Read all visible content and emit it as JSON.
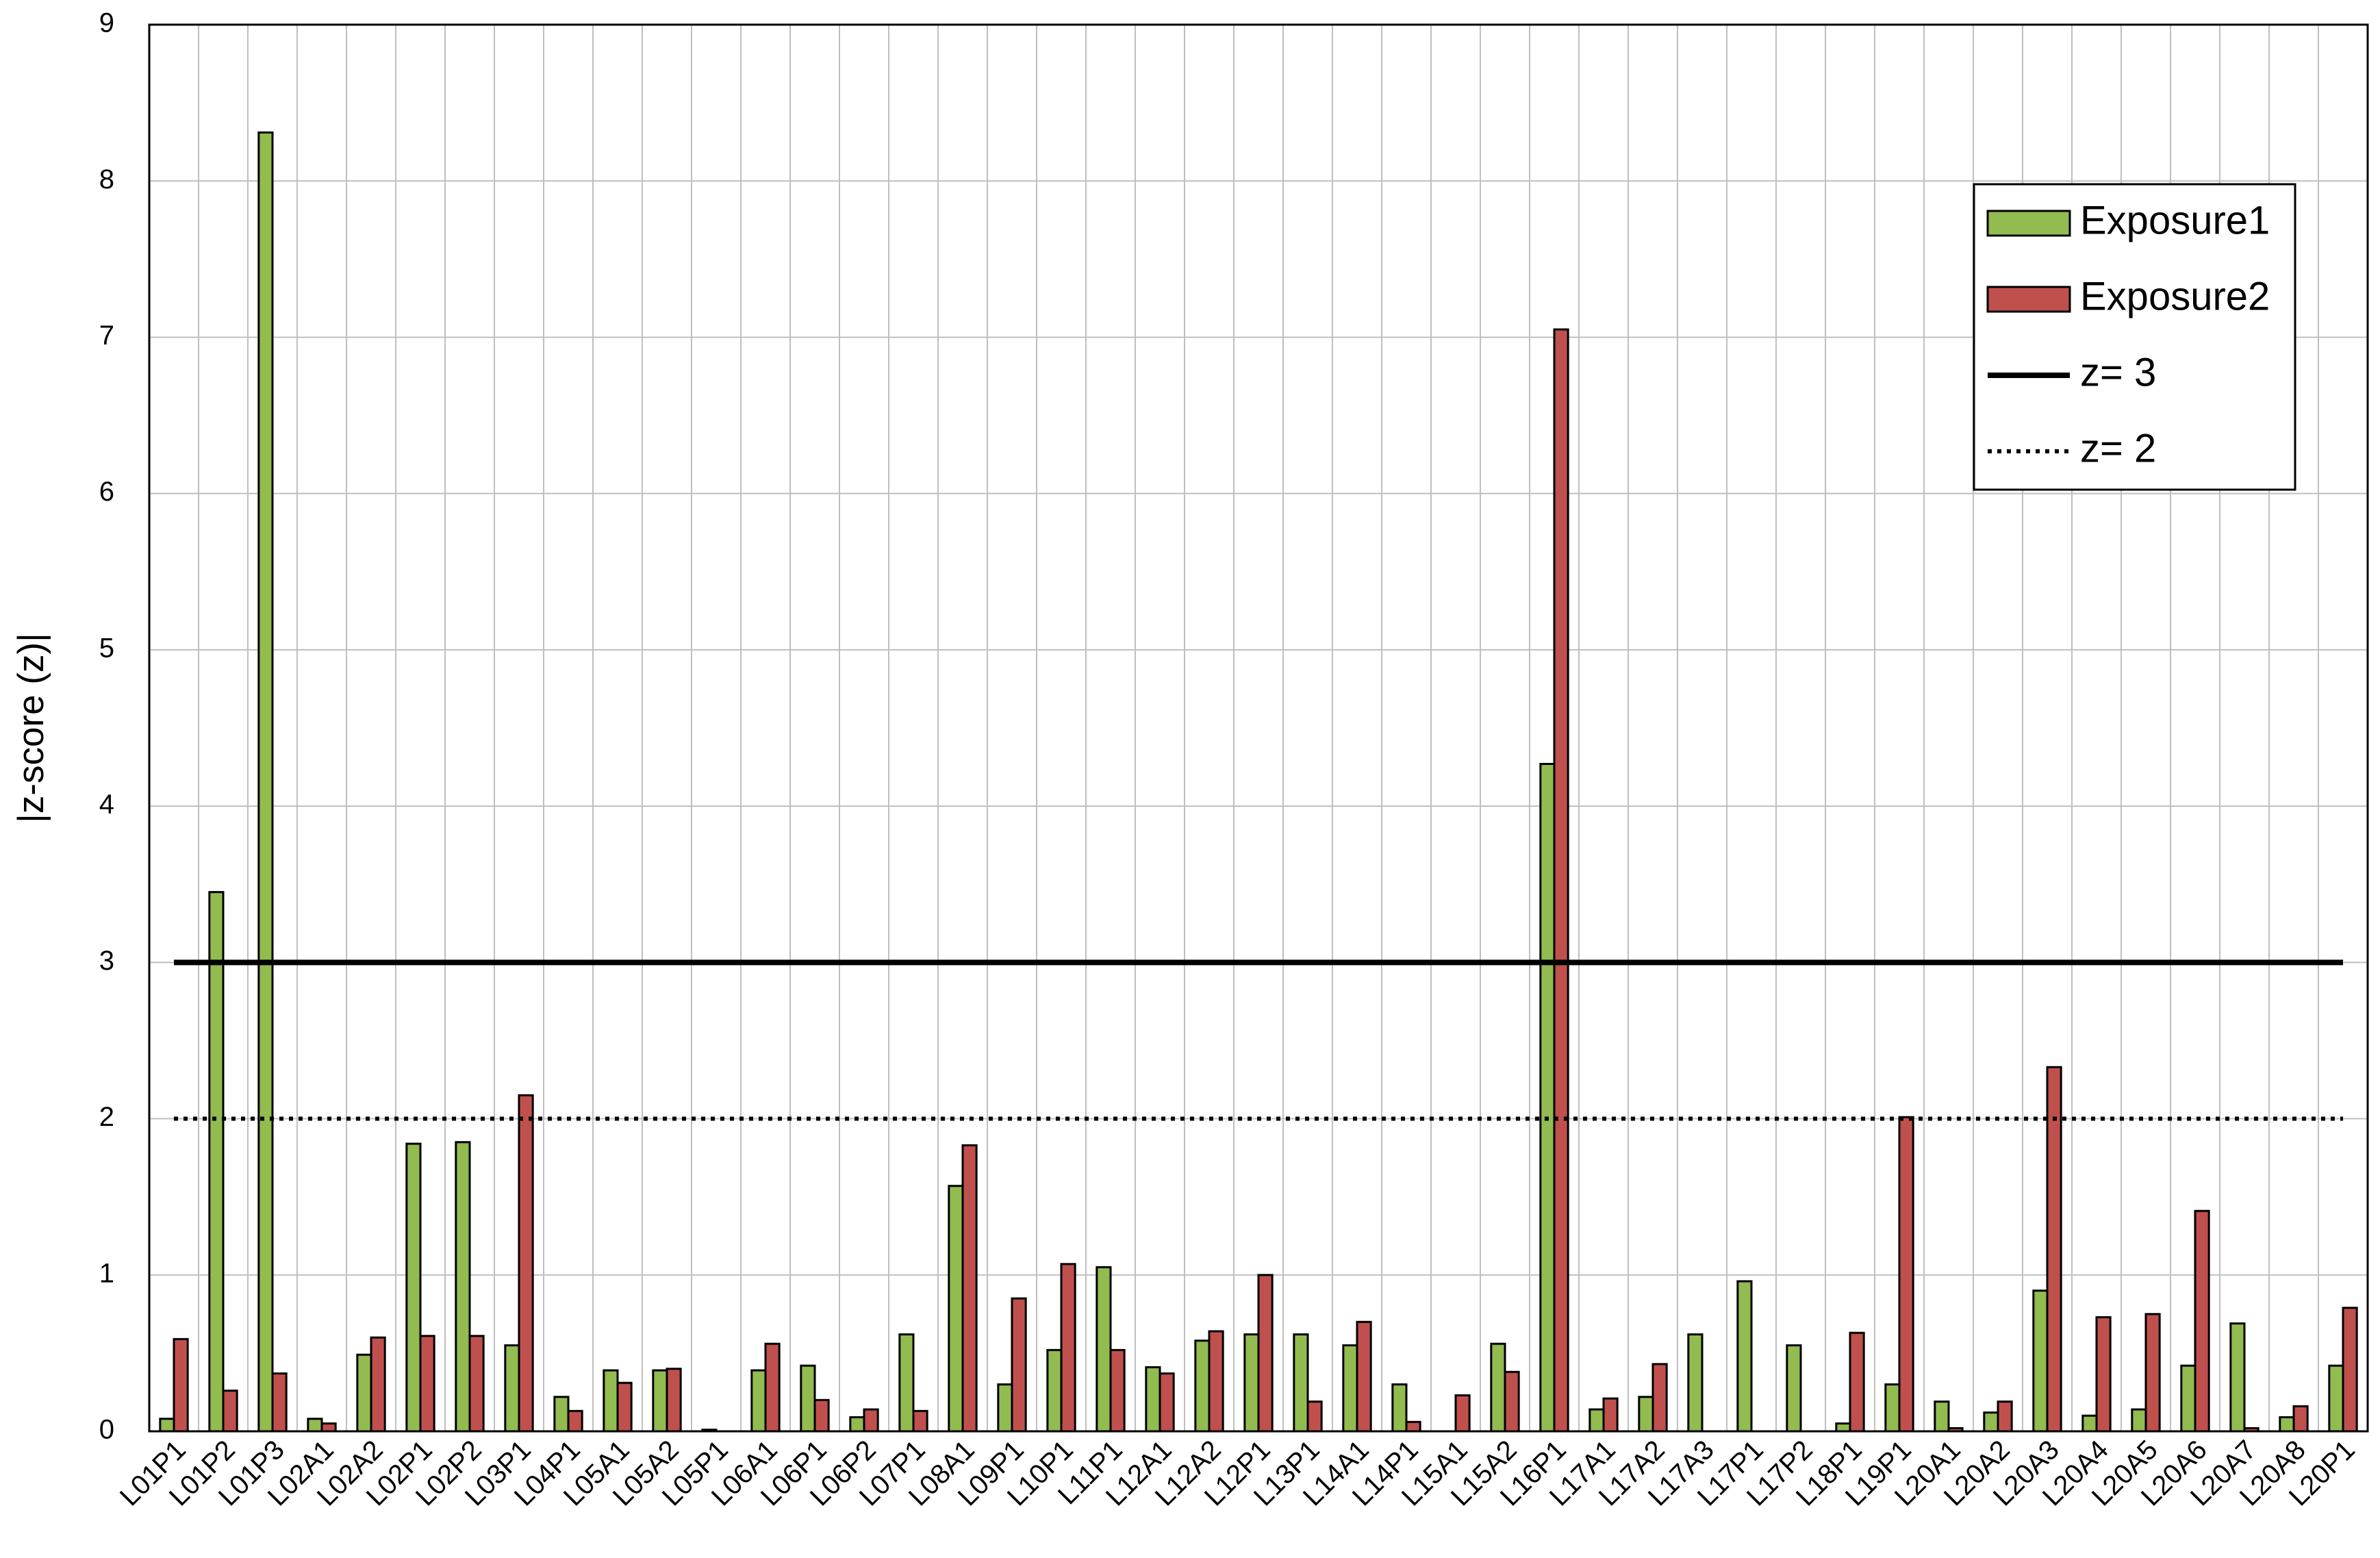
{
  "chart_data": {
    "type": "bar",
    "ylabel": "|z-score (z)|",
    "categories": [
      "L01P1",
      "L01P2",
      "L01P3",
      "L02A1",
      "L02A2",
      "L02P1",
      "L02P2",
      "L03P1",
      "L04P1",
      "L05A1",
      "L05A2",
      "L05P1",
      "L06A1",
      "L06P1",
      "L06P2",
      "L07P1",
      "L08A1",
      "L09P1",
      "L10P1",
      "L11P1",
      "L12A1",
      "L12A2",
      "L12P1",
      "L13P1",
      "L14A1",
      "L14P1",
      "L15A1",
      "L15A2",
      "L16P1",
      "L17A1",
      "L17A2",
      "L17A3",
      "L17P1",
      "L17P2",
      "L18P1",
      "L19P1",
      "L20A1",
      "L20A2",
      "L20A3",
      "L20A4",
      "L20A5",
      "L20A6",
      "L20A7",
      "L20A8",
      "L20P1"
    ],
    "series": [
      {
        "name": "Exposure1",
        "color": "#92bb50",
        "values": [
          0.08,
          3.45,
          8.31,
          0.08,
          0.49,
          1.84,
          1.85,
          0.55,
          0.22,
          0.39,
          0.39,
          0.01,
          0.39,
          0.42,
          0.09,
          0.62,
          1.57,
          0.3,
          0.52,
          1.05,
          0.41,
          0.58,
          0.62,
          0.62,
          0.55,
          0.3,
          null,
          0.56,
          4.27,
          0.14,
          0.22,
          0.62,
          0.96,
          0.55,
          0.05,
          0.3,
          0.19,
          0.12,
          0.9,
          0.1,
          0.14,
          0.42,
          0.69,
          0.09,
          0.42
        ]
      },
      {
        "name": "Exposure2",
        "color": "#c0504d",
        "values": [
          0.59,
          0.26,
          0.37,
          0.05,
          0.6,
          0.61,
          0.61,
          2.15,
          0.13,
          0.31,
          0.4,
          null,
          0.56,
          0.2,
          0.14,
          0.13,
          1.83,
          0.85,
          1.07,
          0.52,
          0.37,
          0.64,
          1.0,
          0.19,
          0.7,
          0.06,
          0.23,
          0.38,
          7.05,
          0.21,
          0.43,
          null,
          null,
          null,
          0.63,
          2.01,
          0.02,
          0.19,
          2.33,
          0.73,
          0.75,
          1.41,
          0.02,
          0.16,
          0.79
        ]
      }
    ],
    "reference_lines": [
      {
        "name": "z= 3",
        "value": 3,
        "style": "solid",
        "color": "#000000"
      },
      {
        "name": "z= 2",
        "value": 2,
        "style": "dotted",
        "color": "#000000"
      }
    ],
    "ylim": [
      0,
      9
    ],
    "yticks": [
      0,
      1,
      2,
      3,
      4,
      5,
      6,
      7,
      8,
      9
    ],
    "grid": true,
    "legend": "upper right"
  }
}
